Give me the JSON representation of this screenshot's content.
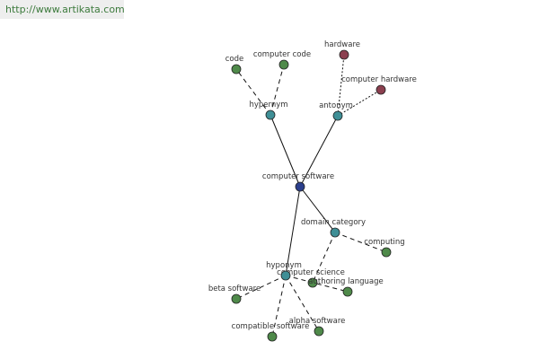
{
  "header": {
    "url": "http://www.artikata.com"
  },
  "nodes": [
    {
      "label": "computer software"
    },
    {
      "label": "hypernym"
    },
    {
      "label": "antonym"
    },
    {
      "label": "code"
    },
    {
      "label": "computer code"
    },
    {
      "label": "hardware"
    },
    {
      "label": "computer hardware"
    },
    {
      "label": "domain category"
    },
    {
      "label": "computing"
    },
    {
      "label": "computer science"
    },
    {
      "label": "authoring language"
    },
    {
      "label": "hyponym"
    },
    {
      "label": "beta software"
    },
    {
      "label": "compatible software"
    },
    {
      "label": "alpha software"
    }
  ]
}
